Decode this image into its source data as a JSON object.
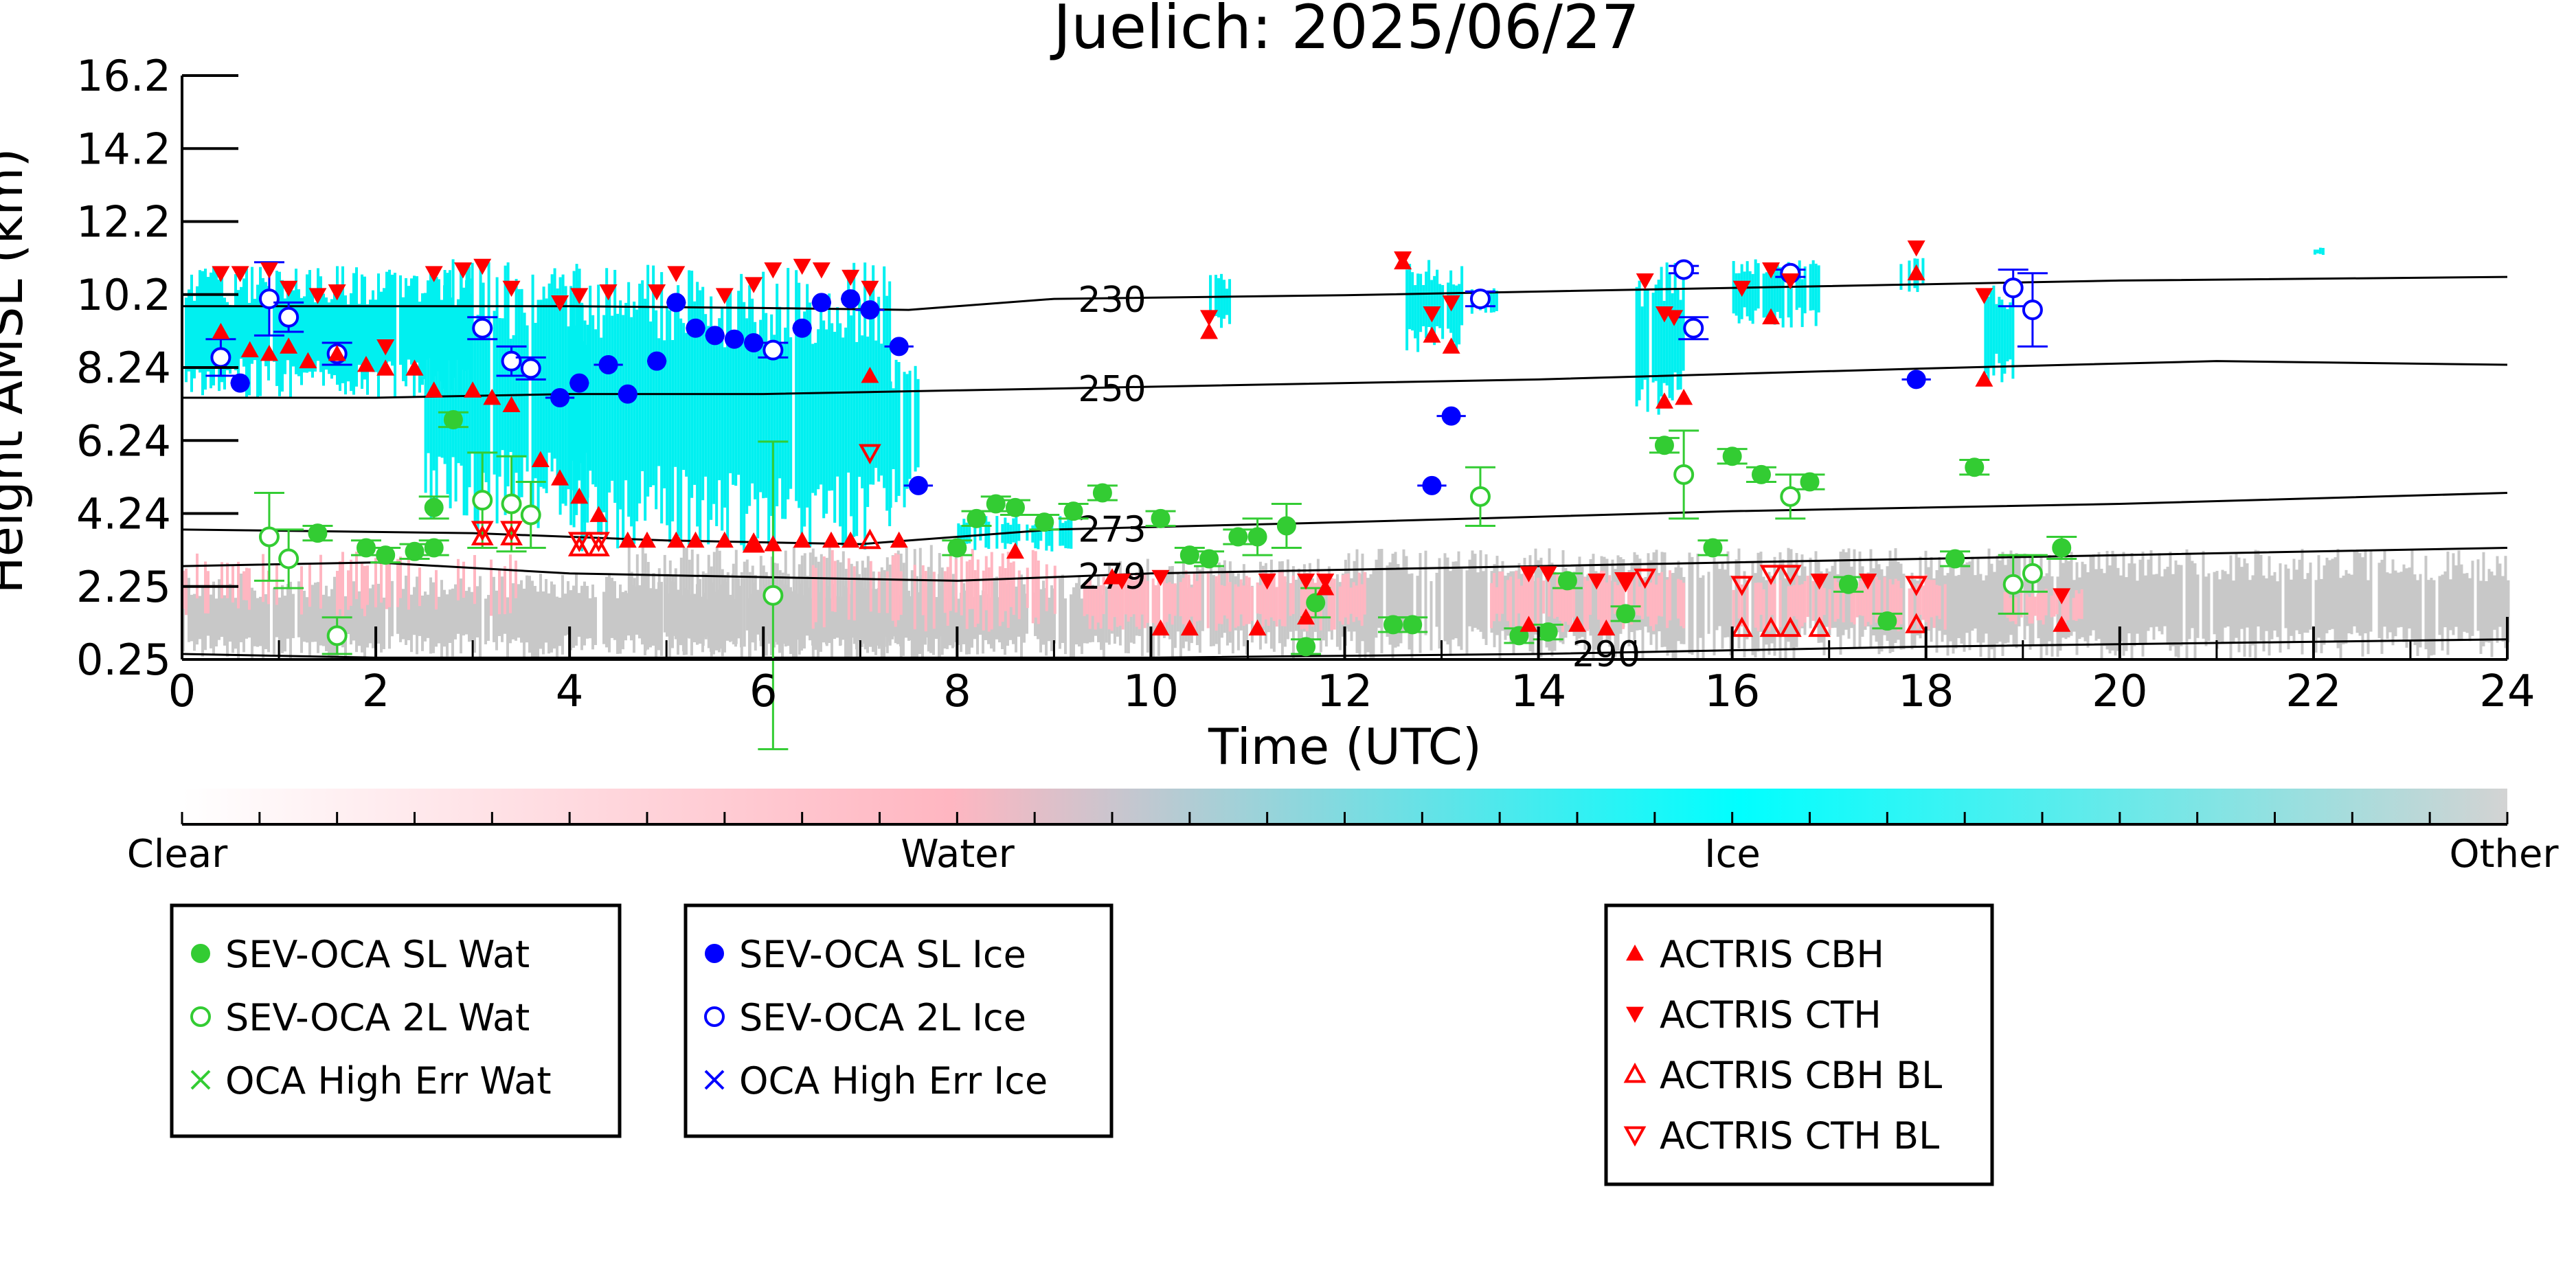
{
  "chart_data": {
    "type": "scatter",
    "title": "Juelich: 2025/06/27",
    "xlabel": "Time (UTC)",
    "ylabel": "Height AMSL (km)",
    "xlim": [
      0,
      24
    ],
    "ylim": [
      0.25,
      16.2
    ],
    "x_ticks": [
      0,
      2,
      4,
      6,
      8,
      10,
      12,
      14,
      16,
      18,
      20,
      22,
      24
    ],
    "x_tick_labels": [
      "0",
      "2",
      "4",
      "6",
      "8",
      "10",
      "12",
      "14",
      "16",
      "18",
      "20",
      "22",
      "24"
    ],
    "y_tick_labels": [
      "16.2",
      "14.2",
      "12.2",
      "10.2",
      "8.24",
      "6.24",
      "4.24",
      "2.25",
      "0.25"
    ],
    "colorbar": {
      "labels": [
        "Clear",
        "Water",
        "Ice",
        "Other"
      ],
      "colors": [
        "#ffffff",
        "#ffb6c1",
        "#00ffff",
        "#d3d3d3"
      ]
    },
    "background_colors": {
      "water": "#ffb6c1",
      "ice": "#00f0f0",
      "other": "#c8c8c8"
    },
    "isotherms": [
      {
        "label": "230",
        "label_x": 9.6,
        "points": [
          [
            0,
            9.9
          ],
          [
            2,
            9.9
          ],
          [
            4,
            9.9
          ],
          [
            6,
            9.85
          ],
          [
            7.5,
            9.8
          ],
          [
            9,
            10.1
          ],
          [
            12,
            10.2
          ],
          [
            16,
            10.4
          ],
          [
            20,
            10.6
          ],
          [
            24,
            10.7
          ]
        ]
      },
      {
        "label": "250",
        "label_x": 9.6,
        "points": [
          [
            0,
            7.4
          ],
          [
            2,
            7.4
          ],
          [
            4,
            7.5
          ],
          [
            6,
            7.5
          ],
          [
            8,
            7.6
          ],
          [
            10,
            7.7
          ],
          [
            14,
            7.9
          ],
          [
            18,
            8.2
          ],
          [
            21,
            8.4
          ],
          [
            24,
            8.3
          ]
        ]
      },
      {
        "label": "273",
        "label_x": 9.6,
        "points": [
          [
            0,
            3.8
          ],
          [
            3,
            3.7
          ],
          [
            5,
            3.5
          ],
          [
            7,
            3.4
          ],
          [
            9,
            3.8
          ],
          [
            12,
            4.0
          ],
          [
            16,
            4.3
          ],
          [
            20,
            4.5
          ],
          [
            24,
            4.8
          ]
        ]
      },
      {
        "label": "279",
        "label_x": 9.6,
        "points": [
          [
            0,
            2.8
          ],
          [
            2,
            2.9
          ],
          [
            4,
            2.6
          ],
          [
            6,
            2.5
          ],
          [
            8,
            2.4
          ],
          [
            10,
            2.6
          ],
          [
            14,
            2.8
          ],
          [
            18,
            3.0
          ],
          [
            24,
            3.3
          ]
        ]
      },
      {
        "label": "290",
        "label_x": 14.7,
        "points": [
          [
            0,
            0.4
          ],
          [
            2,
            0.3
          ],
          [
            4,
            0.3
          ],
          [
            10,
            0.3
          ],
          [
            14,
            0.4
          ],
          [
            18,
            0.6
          ],
          [
            24,
            0.8
          ]
        ]
      }
    ],
    "series": [
      {
        "name": "SEV-OCA SL Wat",
        "color": "#33cc33",
        "marker": "filled-circle",
        "x": [
          1.4,
          1.9,
          2.1,
          2.4,
          2.6,
          2.8,
          8.0,
          8.2,
          8.4,
          8.6,
          8.9,
          9.2,
          9.5,
          10.1,
          10.4,
          10.6,
          10.9,
          11.1,
          11.4,
          11.7,
          12.5,
          14.3,
          14.9,
          15.3,
          15.8,
          16.0,
          16.3,
          16.8,
          17.2,
          17.6,
          18.3,
          18.5,
          19.4,
          13.8,
          14.1,
          11.6,
          12.7,
          2.6
        ],
        "y": [
          3.7,
          3.3,
          3.1,
          3.2,
          4.4,
          6.8,
          3.3,
          4.1,
          4.5,
          4.4,
          4.0,
          4.3,
          4.8,
          4.1,
          3.1,
          3.0,
          3.6,
          3.6,
          3.9,
          1.8,
          1.2,
          2.4,
          1.5,
          6.1,
          3.3,
          5.8,
          5.3,
          5.1,
          2.3,
          1.3,
          3.0,
          5.5,
          3.3,
          0.9,
          1.0,
          0.6,
          1.2,
          3.3
        ],
        "yerr": [
          0.2,
          0.2,
          0.2,
          0.2,
          0.3,
          0.2,
          0.2,
          0.2,
          0.2,
          0.2,
          0.2,
          0.2,
          0.2,
          0.2,
          0.2,
          0.2,
          0.2,
          0.5,
          0.6,
          0.4,
          0.2,
          0.2,
          0.2,
          0.2,
          0.2,
          0.2,
          0.2,
          0.2,
          0.2,
          0.2,
          0.2,
          0.2,
          0.3,
          0.2,
          0.2,
          0.2,
          0.2,
          0.2
        ]
      },
      {
        "name": "SEV-OCA 2L Wat",
        "color": "#33cc33",
        "marker": "open-circle",
        "x": [
          0.9,
          1.1,
          1.6,
          3.1,
          3.4,
          3.6,
          6.1,
          13.4,
          15.5,
          16.6,
          18.9,
          19.1
        ],
        "y": [
          3.6,
          3.0,
          0.9,
          4.6,
          4.5,
          4.2,
          2.0,
          4.7,
          5.3,
          4.7,
          2.3,
          2.6
        ],
        "yerr": [
          1.2,
          0.8,
          0.5,
          1.3,
          1.3,
          0.9,
          4.2,
          0.8,
          1.2,
          0.6,
          0.8,
          0.5
        ]
      },
      {
        "name": "OCA High Err Wat",
        "color": "#33cc33",
        "marker": "x",
        "x": [],
        "y": []
      },
      {
        "name": "SEV-OCA SL Ice",
        "color": "#0000ff",
        "marker": "filled-circle",
        "x": [
          0.6,
          3.9,
          4.1,
          4.4,
          4.6,
          4.9,
          5.1,
          5.3,
          5.5,
          5.7,
          5.9,
          6.4,
          6.6,
          6.9,
          7.1,
          7.4,
          7.6,
          12.9,
          13.1,
          17.9
        ],
        "y": [
          7.8,
          7.4,
          7.8,
          8.3,
          7.5,
          8.4,
          10.0,
          9.3,
          9.1,
          9.0,
          8.9,
          9.3,
          10.0,
          10.1,
          9.8,
          8.8,
          5.0,
          5.0,
          6.9,
          7.9
        ],
        "xerr": [
          0.1,
          0.15,
          0.1,
          0.15,
          0.1,
          0.1,
          0.1,
          0.1,
          0.1,
          0.1,
          0.1,
          0.1,
          0.1,
          0.1,
          0.15,
          0.15,
          0.15,
          0.15,
          0.15,
          0.15
        ]
      },
      {
        "name": "SEV-OCA 2L Ice",
        "color": "#0000ff",
        "marker": "open-circle",
        "x": [
          0.4,
          0.9,
          1.1,
          1.6,
          3.1,
          3.4,
          3.6,
          6.1,
          13.4,
          15.5,
          15.6,
          16.6,
          18.9,
          19.1
        ],
        "y": [
          8.5,
          10.1,
          9.6,
          8.6,
          9.3,
          8.4,
          8.2,
          8.7,
          10.1,
          10.9,
          9.3,
          10.8,
          10.4,
          9.8
        ],
        "yerr": [
          0.5,
          1.0,
          0.4,
          0.3,
          0.3,
          0.4,
          0.3,
          0.2,
          0.2,
          0.1,
          0.3,
          0.1,
          0.5,
          1.0
        ]
      },
      {
        "name": "OCA High Err Ice",
        "color": "#0000ff",
        "marker": "x",
        "x": [],
        "y": []
      },
      {
        "name": "ACTRIS CBH",
        "color": "#ff0000",
        "marker": "triangle-up",
        "x": [
          0.4,
          0.7,
          0.9,
          1.1,
          1.3,
          1.6,
          1.9,
          2.1,
          2.4,
          2.6,
          3.0,
          3.2,
          3.4,
          3.7,
          3.9,
          4.1,
          4.3,
          4.6,
          4.8,
          5.1,
          5.3,
          5.6,
          5.9,
          6.1,
          6.4,
          6.7,
          6.9,
          7.1,
          10.1,
          10.4,
          10.6,
          11.1,
          11.6,
          12.6,
          12.9,
          13.1,
          13.9,
          14.4,
          14.7,
          15.3,
          15.5,
          16.4,
          17.9,
          18.6,
          19.4,
          7.4,
          8.6,
          9.6,
          11.8
        ],
        "y": [
          9.2,
          8.7,
          8.6,
          8.8,
          8.4,
          8.6,
          8.3,
          8.2,
          8.2,
          7.6,
          7.6,
          7.4,
          7.2,
          5.7,
          5.2,
          4.7,
          4.2,
          3.5,
          3.5,
          3.5,
          3.5,
          3.5,
          3.4,
          3.4,
          3.5,
          3.5,
          3.5,
          8.0,
          1.1,
          1.1,
          9.2,
          1.1,
          1.4,
          11.1,
          9.1,
          8.8,
          1.2,
          1.2,
          1.1,
          7.3,
          7.4,
          9.6,
          10.8,
          7.9,
          1.2,
          3.5,
          3.2,
          2.5,
          2.2
        ]
      },
      {
        "name": "ACTRIS CTH",
        "color": "#ff0000",
        "marker": "triangle-down",
        "x": [
          0.4,
          0.6,
          0.9,
          1.1,
          1.4,
          1.6,
          2.1,
          2.6,
          2.9,
          3.1,
          3.4,
          3.9,
          4.1,
          4.4,
          4.9,
          5.1,
          5.6,
          5.9,
          6.1,
          6.4,
          6.6,
          6.9,
          7.1,
          9.7,
          10.1,
          10.6,
          11.2,
          11.6,
          11.8,
          12.6,
          12.9,
          13.1,
          13.9,
          14.1,
          14.6,
          14.9,
          15.1,
          15.3,
          15.4,
          16.1,
          16.4,
          16.6,
          16.9,
          17.4,
          17.9,
          18.6,
          19.4
        ],
        "y": [
          10.8,
          10.8,
          10.9,
          10.4,
          10.2,
          10.3,
          8.8,
          10.8,
          10.9,
          11.0,
          10.4,
          10.0,
          10.2,
          10.3,
          10.3,
          10.8,
          10.2,
          10.5,
          10.9,
          11.0,
          10.9,
          10.7,
          10.4,
          2.4,
          2.5,
          9.6,
          2.4,
          2.4,
          2.4,
          11.2,
          9.7,
          10.0,
          2.6,
          2.6,
          2.4,
          2.4,
          10.6,
          9.7,
          9.6,
          10.4,
          10.9,
          10.6,
          2.4,
          2.4,
          11.5,
          10.2,
          2.0
        ]
      },
      {
        "name": "ACTRIS CBH BL",
        "color": "#ff0000",
        "marker": "open-triangle-up",
        "x": [
          3.1,
          3.4,
          4.1,
          4.3,
          5.9,
          7.1,
          16.1,
          16.4,
          16.6,
          16.9,
          17.9
        ],
        "y": [
          3.6,
          3.6,
          3.3,
          3.3,
          3.4,
          3.5,
          1.1,
          1.1,
          1.1,
          1.1,
          1.2
        ]
      },
      {
        "name": "ACTRIS CTH BL",
        "color": "#ff0000",
        "marker": "open-triangle-down",
        "x": [
          3.1,
          3.4,
          4.1,
          4.3,
          7.1,
          14.9,
          15.1,
          16.1,
          16.4,
          16.6,
          17.9
        ],
        "y": [
          3.8,
          3.8,
          3.5,
          3.5,
          5.9,
          2.4,
          2.5,
          2.3,
          2.6,
          2.6,
          2.3
        ]
      }
    ],
    "legend_groups": [
      [
        "SEV-OCA SL Wat",
        "SEV-OCA 2L Wat",
        "OCA High Err Wat"
      ],
      [
        "SEV-OCA SL Ice",
        "SEV-OCA 2L Ice",
        "OCA High Err Ice"
      ],
      [
        "ACTRIS CBH",
        "ACTRIS CTH",
        "ACTRIS CBH BL",
        "ACTRIS CTH BL"
      ]
    ]
  }
}
